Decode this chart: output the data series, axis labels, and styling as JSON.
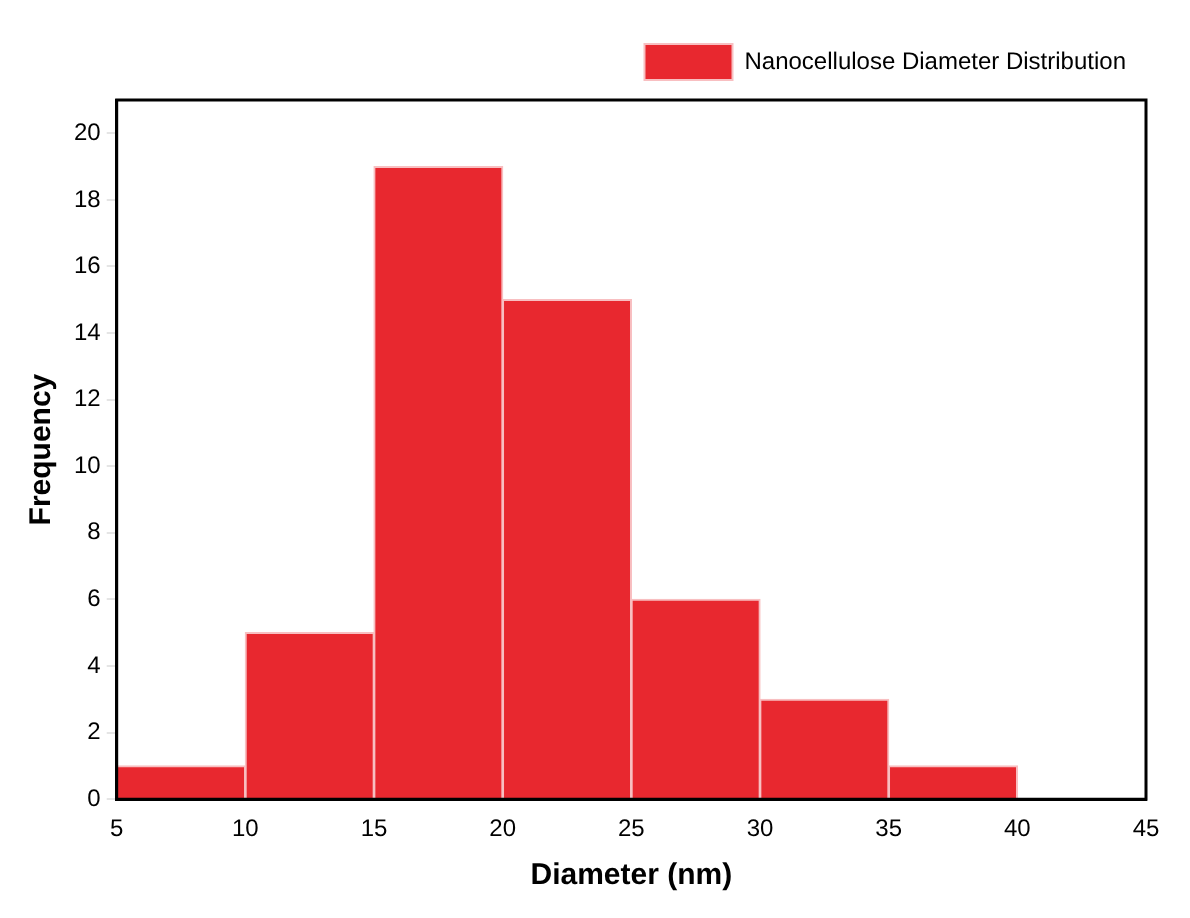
{
  "chart_data": {
    "type": "histogram",
    "xlabel": "Diameter (nm)",
    "ylabel": "Frequency",
    "bins": [
      5,
      10,
      15,
      20,
      25,
      30,
      35,
      40
    ],
    "series": [
      {
        "name": "Nanocellulose Diameter Distribution",
        "color": "#e8282f",
        "values": [
          1,
          5,
          19,
          15,
          6,
          3,
          1
        ]
      }
    ],
    "xlim": [
      5,
      45
    ],
    "xticks": [
      5,
      10,
      15,
      20,
      25,
      30,
      35,
      40,
      45
    ],
    "ylim": [
      0,
      21
    ],
    "yticks": [
      0,
      2,
      4,
      6,
      8,
      10,
      12,
      14,
      16,
      18,
      20
    ],
    "grid": false,
    "legend": "top right"
  }
}
